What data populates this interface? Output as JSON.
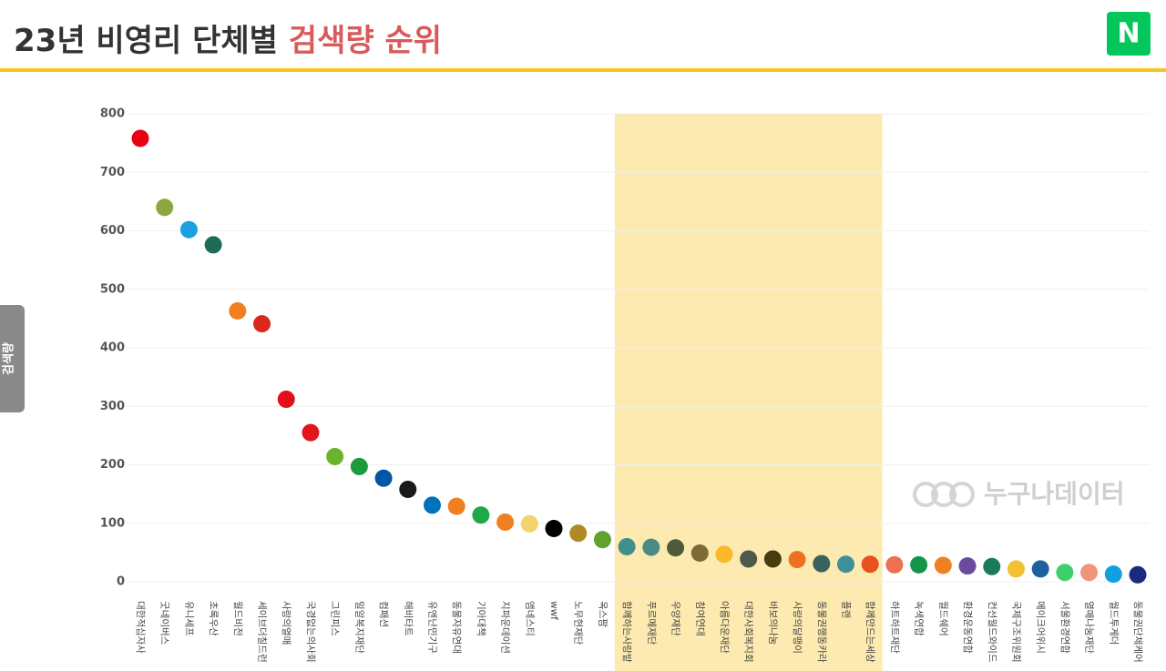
{
  "brand": "N",
  "watermark": "누구나데이터",
  "chart_data": {
    "type": "dot",
    "title": "23년 비영리 단체별",
    "title_highlight": "검색량 순위",
    "y_label": "검색량",
    "categories": [
      "대한적십자사",
      "굿네이버스",
      "유니세프",
      "초록우산",
      "월드비전",
      "세이브더칠드런",
      "사랑의열매",
      "국경없는의사회",
      "그린피스",
      "밀알복지재단",
      "컴패션",
      "해비타트",
      "유엔난민기구",
      "동물자유연대",
      "기아대책",
      "지파운데이션",
      "앰네스티",
      "wwf",
      "노무현재단",
      "옥스팜",
      "함께하는사랑밭",
      "푸르메재단",
      "우양재단",
      "참여연대",
      "아름다운재단",
      "대한사회복지회",
      "바보의나눔",
      "사랑의달팽이",
      "동물권행동카라",
      "플랜",
      "함께만드는세상",
      "하트하트재단",
      "녹색연합",
      "월드쉐어",
      "환경운동연합",
      "컨선월드와이드",
      "국제구조위원회",
      "메이크어위시",
      "서울환경연합",
      "열매나눔재단",
      "월드투게더",
      "동물권단체케어"
    ],
    "values": [
      758,
      640,
      602,
      576,
      463,
      441,
      312,
      255,
      214,
      197,
      177,
      158,
      131,
      129,
      114,
      102,
      99,
      91,
      83,
      72,
      60,
      59,
      58,
      49,
      47,
      39,
      39,
      38,
      31,
      30,
      30,
      29,
      29,
      28,
      27,
      26,
      22,
      22,
      16,
      16,
      13,
      12
    ],
    "colors": [
      "#e60012",
      "#8aa83c",
      "#1ba0e2",
      "#1e6b57",
      "#f07f22",
      "#d9291c",
      "#e10f1a",
      "#e2141e",
      "#6ab42d",
      "#1d9a3e",
      "#0055a4",
      "#1a1a1a",
      "#0072bc",
      "#f07f22",
      "#1fa84a",
      "#f07f22",
      "#f2d46b",
      "#000000",
      "#b08a22",
      "#5fa32e",
      "#3f8f8a",
      "#4a8c85",
      "#4e5a3a",
      "#7d6a37",
      "#fbb829",
      "#4d5a4a",
      "#4a3a10",
      "#f07022",
      "#3a6060",
      "#3f8f9a",
      "#e8501e",
      "#ee7050",
      "#14944a",
      "#f07f22",
      "#6c4aa0",
      "#1a7a5a",
      "#f2c030",
      "#1e60a0",
      "#3ecf6a",
      "#f0957a",
      "#10a0e0",
      "#1a2a80"
    ],
    "highlight": {
      "from": "함께하는사랑밭",
      "to": "함께만드는세상",
      "color": "#fdeab0"
    },
    "ylim": [
      0,
      800
    ],
    "yticks": [
      0,
      100,
      200,
      300,
      400,
      500,
      600,
      700,
      800
    ],
    "grid": true
  }
}
